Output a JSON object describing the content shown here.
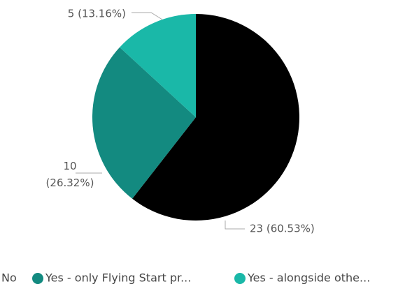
{
  "chart_data": {
    "type": "pie",
    "categories": [
      "No",
      "Yes - only Flying Start pr...",
      "Yes - alongside othe..."
    ],
    "values": [
      23,
      10,
      5
    ],
    "value_labels": [
      "23 (60.53%)",
      "10 (26.32%)",
      "5 (13.16%)"
    ],
    "colors": [
      "#000000",
      "#138a80",
      "#1ab8a8"
    ],
    "legend": "bottom"
  }
}
